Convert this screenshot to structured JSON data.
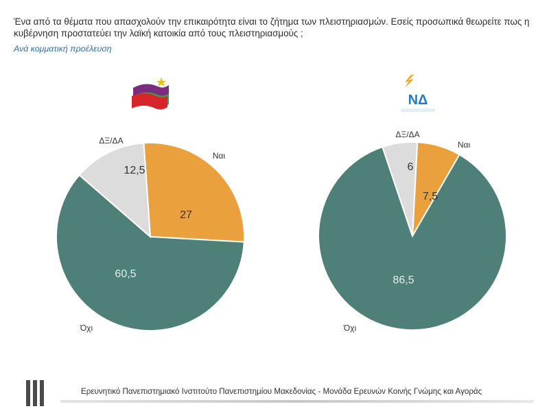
{
  "header": {
    "question": "Ένα από τα θέματα που απασχολούν την επικαιρότητα είναι το ζήτημα των πλειστηριασμών. Εσείς προσωπικά θεωρείτε πως η κυβέρνηση προστατεύει την λαϊκή κατοικία από τους πλειστηριασμούς ;",
    "subtitle": "Ανά κομματική προέλευση"
  },
  "logos": {
    "left_party": "syriza-flag-logo",
    "right_party_text": "ΝΔ"
  },
  "colors": {
    "yes": "#e9a03d",
    "no": "#4f8077",
    "dk": "#dcdcdc",
    "label_dark": "#333333",
    "label_light": "#e6efec"
  },
  "chart_data": [
    {
      "type": "pie",
      "party": "syriza-flag-logo",
      "slices": [
        {
          "label": "Ναι",
          "value": 27
        },
        {
          "label": "Όχι",
          "value": 60.5
        },
        {
          "label": "ΔΞ/ΔΑ",
          "value": 12.5
        }
      ]
    },
    {
      "type": "pie",
      "party": "ΝΔ",
      "slices": [
        {
          "label": "Ναι",
          "value": 7.5
        },
        {
          "label": "Όχι",
          "value": 86.5
        },
        {
          "label": "ΔΞ/ΔΑ",
          "value": 6
        }
      ]
    }
  ],
  "footer": {
    "text": "Ερευνητικό Πανεπιστημιακό Ινστιτούτο Πανεπιστημίου Μακεδονίας - Μονάδα Ερευνών Κοινής Γνώμης και Αγοράς"
  }
}
